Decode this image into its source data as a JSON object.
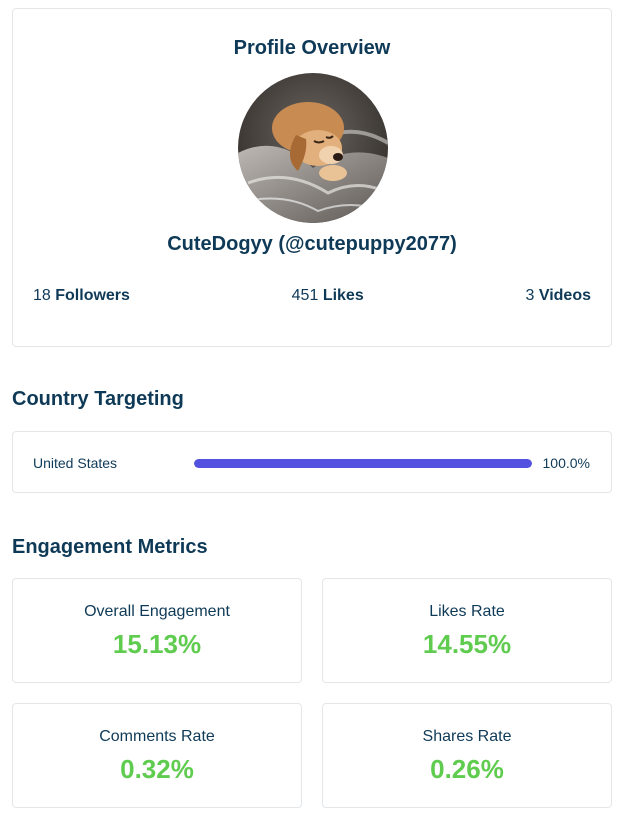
{
  "profile": {
    "title": "Profile Overview",
    "name": "CuteDogyy (@cutepuppy2077)",
    "stats": {
      "followers": {
        "value": "18",
        "label": "Followers"
      },
      "likes": {
        "value": "451",
        "label": "Likes"
      },
      "videos": {
        "value": "3",
        "label": "Videos"
      }
    }
  },
  "country_targeting": {
    "title": "Country Targeting",
    "items": [
      {
        "country": "United States",
        "percent_label": "100.0%",
        "percent": 100.0
      }
    ],
    "bar_color": "#5352e0"
  },
  "engagement": {
    "title": "Engagement Metrics",
    "value_color": "#5fcc4f",
    "metrics": [
      {
        "label": "Overall Engagement",
        "value": "15.13%"
      },
      {
        "label": "Likes Rate",
        "value": "14.55%"
      },
      {
        "label": "Comments Rate",
        "value": "0.32%"
      },
      {
        "label": "Shares Rate",
        "value": "0.26%"
      }
    ]
  }
}
